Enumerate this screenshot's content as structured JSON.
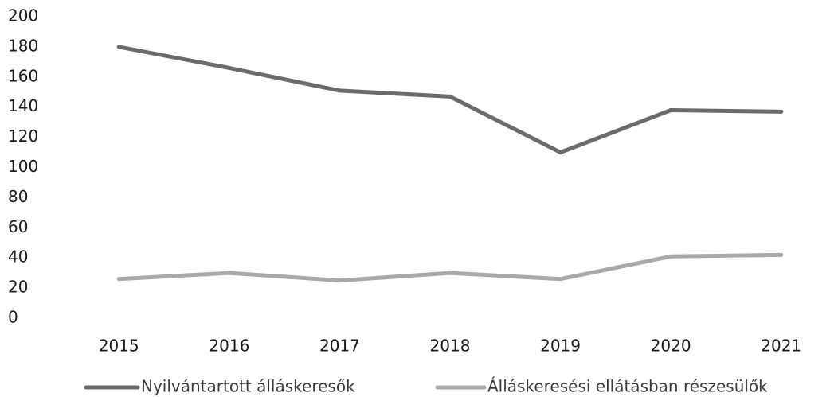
{
  "chart_data": {
    "type": "line",
    "categories": [
      "2015",
      "2016",
      "2017",
      "2018",
      "2019",
      "2020",
      "2021"
    ],
    "series": [
      {
        "name": "Nyilvántartott álláskeresők",
        "values": [
          180,
          166,
          151,
          147,
          110,
          138,
          137
        ],
        "color": "#6b6b6b"
      },
      {
        "name": "Álláskeresési ellátásban részesülők",
        "values": [
          26,
          30,
          25,
          30,
          26,
          41,
          42
        ],
        "color": "#a9a9a9"
      }
    ],
    "yticks": [
      "0",
      "20",
      "40",
      "60",
      "80",
      "100",
      "120",
      "140",
      "160",
      "180",
      "200"
    ],
    "ylim": [
      0,
      200
    ],
    "grid": false,
    "legend_position": "bottom"
  }
}
